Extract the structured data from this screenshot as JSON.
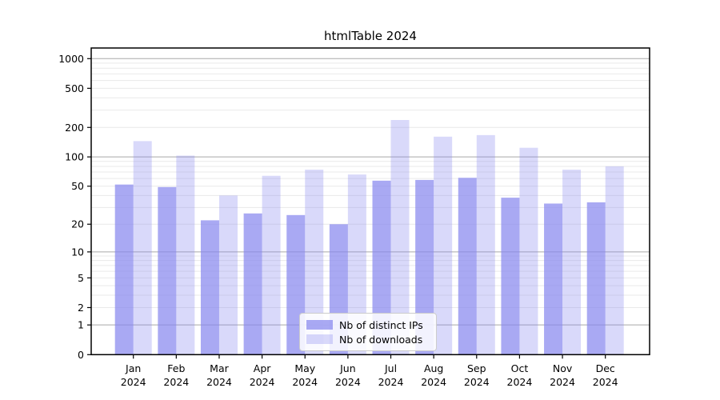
{
  "title": "htmlTable 2024",
  "colors": {
    "background": "#ffffff",
    "bar_base": "#8585ee",
    "major_gridline": "#a9a9a9",
    "minor_gridline": "#e9e9e9",
    "axis": "#000000",
    "legend_border": "#cccccc"
  },
  "chart_data": {
    "type": "bar",
    "title": "htmlTable 2024",
    "scale": "log1p",
    "grid": true,
    "legend_position": "lower center",
    "categories": [
      "Jan",
      "Feb",
      "Mar",
      "Apr",
      "May",
      "Jun",
      "Jul",
      "Aug",
      "Sep",
      "Oct",
      "Nov",
      "Dec"
    ],
    "category_sublabel": "2024",
    "yticks": [
      0,
      1,
      2,
      5,
      10,
      20,
      50,
      100,
      200,
      500,
      1000
    ],
    "ylim": [
      0,
      1300
    ],
    "xlabel": "",
    "ylabel": "",
    "series": [
      {
        "name": "Nb of distinct IPs",
        "color": "#8585ee",
        "alpha": 0.7,
        "values": [
          52,
          49,
          22,
          26,
          25,
          20,
          57,
          58,
          61,
          38,
          33,
          34
        ]
      },
      {
        "name": "Nb of downloads",
        "color": "#8585ee",
        "alpha": 0.31,
        "values": [
          145,
          103,
          40,
          64,
          74,
          66,
          238,
          161,
          167,
          124,
          74,
          80
        ]
      }
    ]
  }
}
